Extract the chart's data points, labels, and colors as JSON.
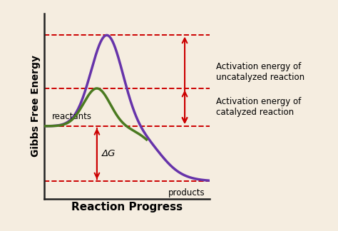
{
  "background_color": "#f5ede0",
  "xlabel": "Reaction Progress",
  "ylabel": "Gibbs Free Energy",
  "purple_color": "#6633aa",
  "green_color": "#4a7a20",
  "arrow_color": "#cc0000",
  "dashed_color": "#cc0000",
  "reactants_level": 0.4,
  "products_level": 0.08,
  "uncatalyzed_peak": 0.93,
  "catalyzed_peak": 0.62,
  "reactants_label": "reactants",
  "products_label": "products",
  "delta_g_label": "ΔG",
  "ann1_l1": "Activation energy of",
  "ann1_l2": "uncatalyzed reaction",
  "ann2_l1": "Activation energy of",
  "ann2_l2": "catalyzed reaction",
  "label_fontsize": 10,
  "annotation_fontsize": 8.5
}
